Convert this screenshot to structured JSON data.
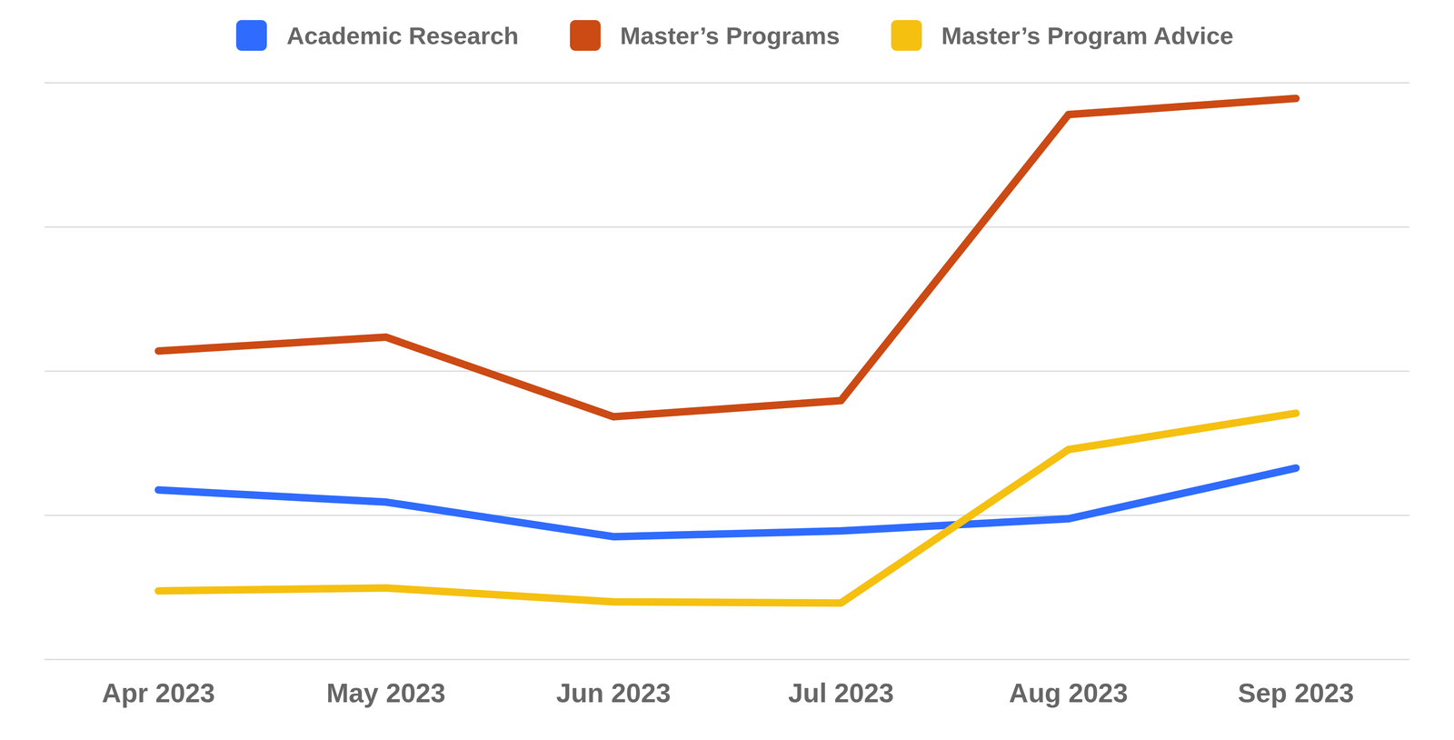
{
  "chart_data": {
    "type": "line",
    "categories": [
      "Apr 2023",
      "May 2023",
      "Jun 2023",
      "Jul 2023",
      "Aug 2023",
      "Sep 2023"
    ],
    "series": [
      {
        "name": "Academic Research",
        "color": "#2f6bff",
        "values": [
          29.4,
          27.3,
          21.3,
          22.3,
          24.4,
          33.2
        ]
      },
      {
        "name": "Master’s Programs",
        "color": "#cc4a14",
        "values": [
          53.5,
          55.9,
          42.1,
          44.9,
          94.5,
          97.3
        ]
      },
      {
        "name": "Master’s Program Advice",
        "color": "#f5c010",
        "values": [
          11.9,
          12.4,
          10.0,
          9.8,
          36.4,
          42.7
        ]
      }
    ],
    "ylim": [
      0,
      100
    ],
    "yticks": [
      0,
      25,
      50,
      75,
      100
    ],
    "grid": true,
    "legend": "top",
    "tick_labels": "x"
  }
}
